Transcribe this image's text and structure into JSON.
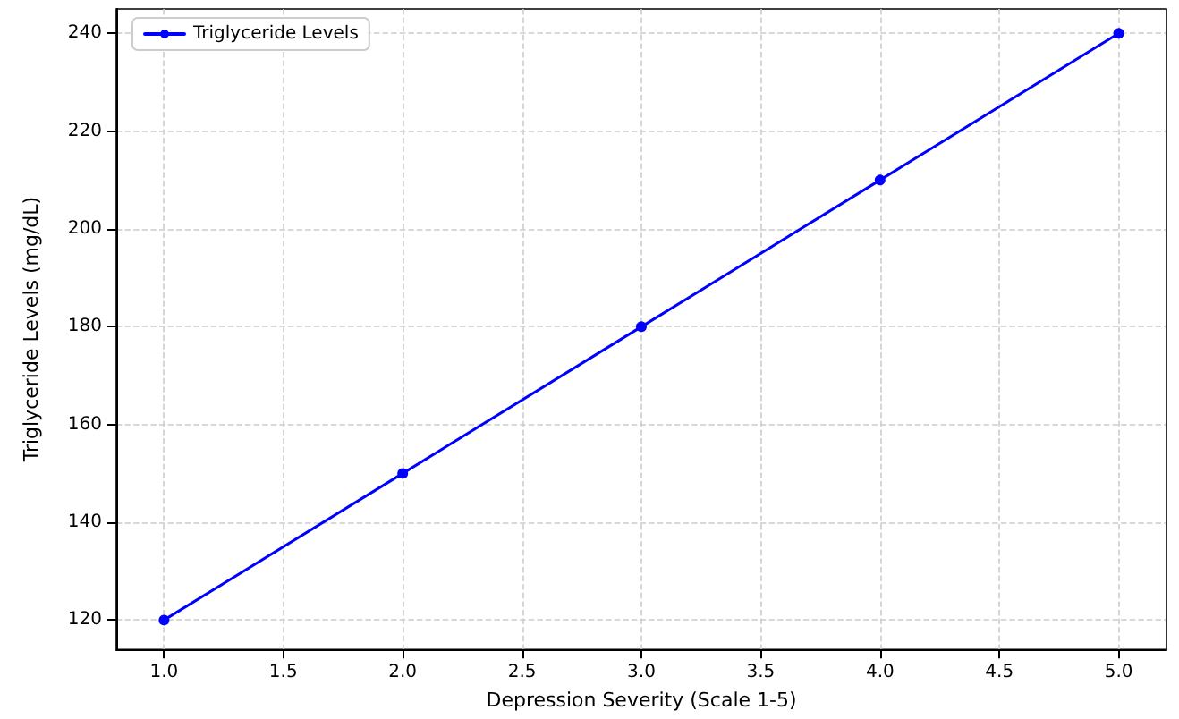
{
  "chart_data": {
    "type": "line",
    "xlabel": "Depression Severity (Scale 1-5)",
    "ylabel": "Triglyceride Levels (mg/dL)",
    "x": [
      1,
      2,
      3,
      4,
      5
    ],
    "series": [
      {
        "name": "Triglyceride Levels",
        "color": "#0000ff",
        "values": [
          120,
          150,
          180,
          210,
          240
        ]
      }
    ],
    "xlim": [
      0.8,
      5.2
    ],
    "xticks": [
      {
        "value": 1,
        "label": "1.0"
      },
      {
        "value": 1.5,
        "label": "1.5"
      },
      {
        "value": 2,
        "label": "2.0"
      },
      {
        "value": 2.5,
        "label": "2.5"
      },
      {
        "value": 3,
        "label": "3.0"
      },
      {
        "value": 3.5,
        "label": "3.5"
      },
      {
        "value": 4,
        "label": "4.0"
      },
      {
        "value": 4.5,
        "label": "4.5"
      },
      {
        "value": 5,
        "label": "5.0"
      }
    ],
    "ylim": [
      114,
      245
    ],
    "yticks": [
      120,
      140,
      160,
      180,
      200,
      220,
      240
    ],
    "grid": true,
    "legend": "top left",
    "marker": "circle",
    "line_style": "solid"
  }
}
